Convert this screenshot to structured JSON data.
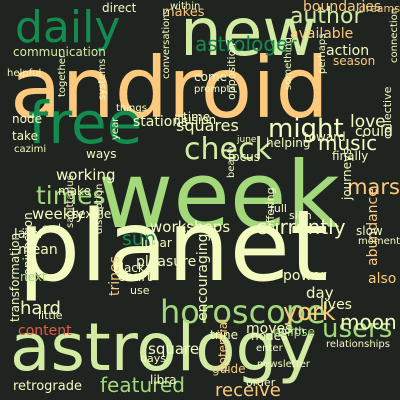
{
  "colors": {
    "background": "#1f2421",
    "palette": [
      "#a3d97a",
      "#fdc97d",
      "#148c4f",
      "#d2eba3",
      "#f4fbc0",
      "#e35b43",
      "#c0392b",
      "#7ec36b"
    ]
  },
  "words": [
    {
      "text": "android"
    },
    {
      "text": "week"
    },
    {
      "text": "planet"
    },
    {
      "text": "astrology"
    },
    {
      "text": "new"
    },
    {
      "text": "free"
    },
    {
      "text": "daily"
    },
    {
      "text": "horoscope"
    },
    {
      "text": "check"
    },
    {
      "text": "might"
    },
    {
      "text": "times"
    },
    {
      "text": "users"
    },
    {
      "text": "york"
    },
    {
      "text": "author"
    },
    {
      "text": "astrologer"
    },
    {
      "text": "music"
    },
    {
      "text": "mars"
    },
    {
      "text": "moon"
    },
    {
      "text": "featured"
    },
    {
      "text": "receive"
    },
    {
      "text": "currently"
    },
    {
      "text": "squares"
    },
    {
      "text": "workshops"
    },
    {
      "text": "sun"
    },
    {
      "text": "hard"
    },
    {
      "text": "love"
    },
    {
      "text": "retrograde"
    },
    {
      "text": "available"
    },
    {
      "text": "communication"
    },
    {
      "text": "stations"
    },
    {
      "text": "weekly"
    },
    {
      "text": "working"
    },
    {
      "text": "power"
    },
    {
      "text": "day"
    },
    {
      "text": "lives"
    },
    {
      "text": "moves"
    },
    {
      "text": "square"
    },
    {
      "text": "content"
    },
    {
      "text": "later"
    },
    {
      "text": "mean"
    },
    {
      "text": "boundaries"
    },
    {
      "text": "action"
    },
    {
      "text": "could"
    },
    {
      "text": "also"
    },
    {
      "text": "pleasure"
    },
    {
      "text": "trines"
    },
    {
      "text": "abundance"
    },
    {
      "text": "encouraging"
    },
    {
      "text": "transformation"
    },
    {
      "text": "conjunction"
    },
    {
      "text": "makes"
    },
    {
      "text": "direct"
    },
    {
      "text": "dreams"
    },
    {
      "text": "sign"
    },
    {
      "text": "lunar"
    },
    {
      "text": "chart"
    },
    {
      "text": "nodes"
    },
    {
      "text": "guide"
    },
    {
      "text": "days"
    },
    {
      "text": "libra"
    },
    {
      "text": "potential"
    },
    {
      "text": "eclipse"
    },
    {
      "text": "trine"
    },
    {
      "text": "sextile"
    },
    {
      "text": "next"
    },
    {
      "text": "journeys"
    },
    {
      "text": "full"
    },
    {
      "text": "focus"
    },
    {
      "text": "helping"
    },
    {
      "text": "toward"
    },
    {
      "text": "finally"
    },
    {
      "text": "illusion"
    },
    {
      "text": "ways"
    },
    {
      "text": "make"
    },
    {
      "text": "node"
    },
    {
      "text": "take"
    },
    {
      "text": "time"
    },
    {
      "text": "come"
    },
    {
      "text": "conversations"
    },
    {
      "text": "opposition"
    },
    {
      "text": "season"
    },
    {
      "text": "newsletter"
    },
    {
      "text": "order"
    },
    {
      "text": "slow"
    },
    {
      "text": "black"
    },
    {
      "text": "offering"
    },
    {
      "text": "disruption"
    },
    {
      "text": "sagittarius"
    },
    {
      "text": "little"
    },
    {
      "text": "use"
    },
    {
      "text": "end"
    },
    {
      "text": "collective"
    },
    {
      "text": "connection"
    },
    {
      "text": "moment"
    },
    {
      "text": "relationships"
    },
    {
      "text": "something"
    },
    {
      "text": "north"
    },
    {
      "text": "enter"
    },
    {
      "text": "year"
    },
    {
      "text": "june"
    },
    {
      "text": "helpful"
    },
    {
      "text": "cazimi"
    },
    {
      "text": "systems"
    },
    {
      "text": "things"
    },
    {
      "text": "prompts"
    },
    {
      "text": "together"
    },
    {
      "text": "within"
    },
    {
      "text": "perhaps"
    },
    {
      "text": "beauty"
    }
  ]
}
